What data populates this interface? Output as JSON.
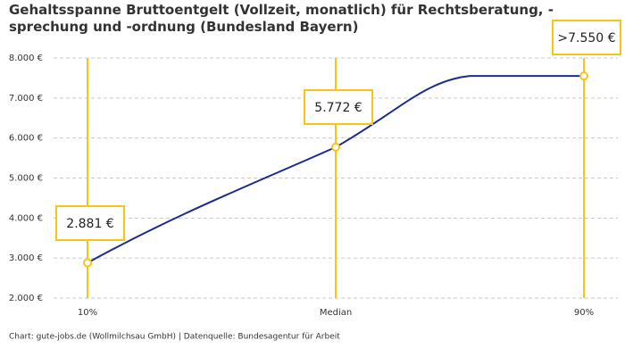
{
  "chart_data": {
    "type": "line",
    "title": "Gehaltsspanne Bruttoentgelt (Vollzeit, monatlich) für Rechtsberatung, -sprechung und -ordnung (Bundesland Bayern)",
    "source": "Chart: gute-jobs.de (Wollmilchsau GmbH) | Datenquelle: Bundesagentur für Arbeit",
    "categories": [
      "10%",
      "Median",
      "90%"
    ],
    "values": [
      2881,
      5772,
      7550
    ],
    "value_labels": [
      "2.881 €",
      "5.772 €",
      ">7.550 €"
    ],
    "color": "#1c2b8c",
    "marker_color": "#f5c518",
    "ylim": [
      2000,
      8000
    ],
    "yticks": [
      {
        "value": 2000,
        "label": "2.000 €"
      },
      {
        "value": 3000,
        "label": "3.000 €"
      },
      {
        "value": 4000,
        "label": "4.000 €"
      },
      {
        "value": 5000,
        "label": "5.000 €"
      },
      {
        "value": 6000,
        "label": "6.000 €"
      },
      {
        "value": 7000,
        "label": "7.000 €"
      },
      {
        "value": 8000,
        "label": "8.000 €"
      }
    ],
    "grid": true
  }
}
